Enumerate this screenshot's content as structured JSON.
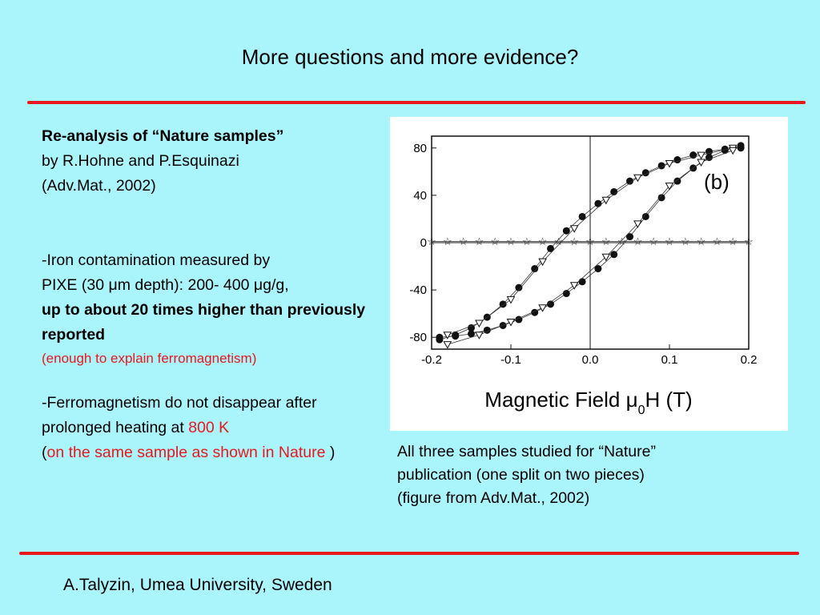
{
  "slide": {
    "title": "More questions and more evidence?",
    "footer": "A.Talyzin, Umea University, Sweden",
    "accent_color": "#e8181c",
    "background_color": "#aaf4fb"
  },
  "left": {
    "heading": "Re-analysis of “Nature samples”",
    "authors": "by R.Hohne and P.Esquinazi",
    "ref": "(Adv.Mat., 2002)",
    "p2_line1": "-Iron contamination measured by",
    "p2_line2": "PIXE (30 μm depth): 200- 400 μg/g,",
    "p2_bold": "up to about 20 times higher than previously reported",
    "p2_red": "(enough to explain ferromagnetism)",
    "p3_text": "-Ferromagnetism do not disappear after  prolonged heating at ",
    "p3_red1": "800 K",
    "p3_open": "(",
    "p3_red2": "on the same sample as shown in Nature",
    "p3_close": " )"
  },
  "caption": {
    "line1": "All three samples studied for “Nature”",
    "line2": "publication (one split on two pieces)",
    "line3": "(figure from Adv.Mat., 2002)"
  },
  "chart_data": {
    "type": "scatter",
    "panel_label": "(b)",
    "xlabel": "Magnetic Field μ0H  (T)",
    "xlim": [
      -0.2,
      0.2
    ],
    "ylim": [
      -90,
      90
    ],
    "xticks": [
      -0.2,
      -0.1,
      0.0,
      0.1,
      0.2
    ],
    "yticks": [
      80,
      40,
      0,
      -40,
      -80
    ],
    "series": [
      {
        "marker": "filled",
        "x": [
          -0.19,
          -0.17,
          -0.15,
          -0.13,
          -0.11,
          -0.09,
          -0.07,
          -0.05,
          -0.03,
          -0.01,
          0.01,
          0.03,
          0.05,
          0.07,
          0.09,
          0.11,
          0.13,
          0.15,
          0.17,
          0.19
        ],
        "y": [
          -82,
          -78,
          -72,
          -63,
          -52,
          -38,
          -22,
          -5,
          10,
          22,
          33,
          43,
          52,
          59,
          65,
          70,
          74,
          77,
          79,
          80
        ]
      },
      {
        "marker": "filled",
        "x": [
          -0.19,
          -0.17,
          -0.15,
          -0.13,
          -0.11,
          -0.09,
          -0.07,
          -0.05,
          -0.03,
          -0.01,
          0.01,
          0.03,
          0.05,
          0.07,
          0.09,
          0.11,
          0.13,
          0.15,
          0.17,
          0.19
        ],
        "y": [
          -80,
          -79,
          -77,
          -74,
          -70,
          -65,
          -59,
          -52,
          -43,
          -33,
          -22,
          -10,
          5,
          22,
          38,
          52,
          63,
          72,
          78,
          82
        ]
      },
      {
        "marker": "open-triangle",
        "x": [
          -0.18,
          -0.14,
          -0.1,
          -0.06,
          -0.02,
          0.02,
          0.06,
          0.1,
          0.14,
          0.18
        ],
        "y": [
          -78,
          -68,
          -48,
          -16,
          12,
          36,
          55,
          67,
          74,
          80
        ]
      },
      {
        "marker": "open-triangle",
        "x": [
          -0.18,
          -0.14,
          -0.1,
          -0.06,
          -0.02,
          0.02,
          0.06,
          0.1,
          0.14,
          0.18
        ],
        "y": [
          -86,
          -78,
          -67,
          -55,
          -36,
          -12,
          16,
          48,
          68,
          78
        ]
      },
      {
        "marker": "star",
        "x": [
          -0.2,
          -0.18,
          -0.16,
          -0.14,
          -0.12,
          -0.1,
          -0.08,
          -0.06,
          -0.04,
          -0.02,
          0.0,
          0.02,
          0.04,
          0.06,
          0.08,
          0.1,
          0.12,
          0.14,
          0.16,
          0.18,
          0.2
        ],
        "y": [
          1,
          1,
          1,
          1,
          1,
          1,
          1,
          1,
          1,
          1,
          1,
          1,
          1,
          1,
          1,
          1,
          1,
          1,
          1,
          1,
          1
        ]
      }
    ]
  }
}
